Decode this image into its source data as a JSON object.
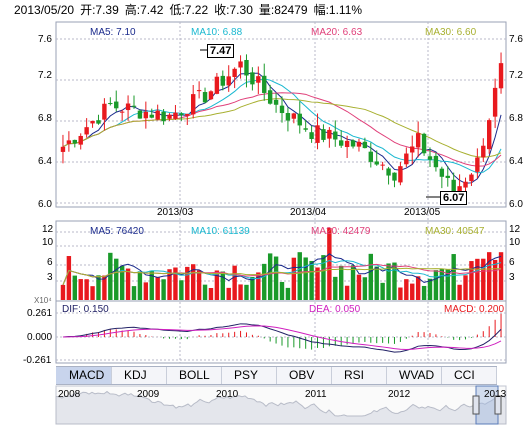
{
  "header": {
    "date": "2013/05/20",
    "open": "开:7.39",
    "high": "高:7.42",
    "low": "低:7.22",
    "close": "收:7.30",
    "volume": "量:82479",
    "change": "幅:1.11%"
  },
  "price_panel": {
    "ma5": "MA5: 7.10",
    "ma10": "MA10: 6.88",
    "ma20": "MA20: 6.63",
    "ma30": "MA30: 6.60",
    "high_callout": "7.47",
    "low_callout": "6.07",
    "y_ticks": [
      "7.6",
      "7.2",
      "6.8",
      "6.4",
      "6.0"
    ],
    "x_ticks": [
      "2013/03",
      "2013/04",
      "2013/05"
    ]
  },
  "volume_panel": {
    "ma5": "MA5: 76420",
    "ma10": "MA10: 61139",
    "ma20": "MA20: 42479",
    "ma30": "MA30: 40547",
    "y_ticks": [
      "12",
      "10",
      "6",
      "3"
    ],
    "unit": "X10⁴"
  },
  "macd_panel": {
    "dif": "DIF: 0.150",
    "dea": "DEA: 0.050",
    "macd": "MACD: 0.200",
    "y_ticks": [
      "0.261",
      "0.000",
      "-0.261"
    ]
  },
  "tabs": [
    "MACD",
    "KDJ",
    "BOLL",
    "PSY",
    "OBV",
    "RSI",
    "WVAD",
    "CCI"
  ],
  "active_tab": "MACD",
  "overview": {
    "years": [
      "2008",
      "2009",
      "2010",
      "2011",
      "2012",
      "2013"
    ]
  },
  "colors": {
    "up": "#e8191e",
    "down": "#1a9a2a",
    "ma5": "#1a2a8c",
    "ma10": "#1ab8d0",
    "ma20": "#e0407a",
    "ma30": "#a8b030",
    "dif": "#222266",
    "dea": "#d020c0",
    "grid": "#b8b8c8"
  }
}
